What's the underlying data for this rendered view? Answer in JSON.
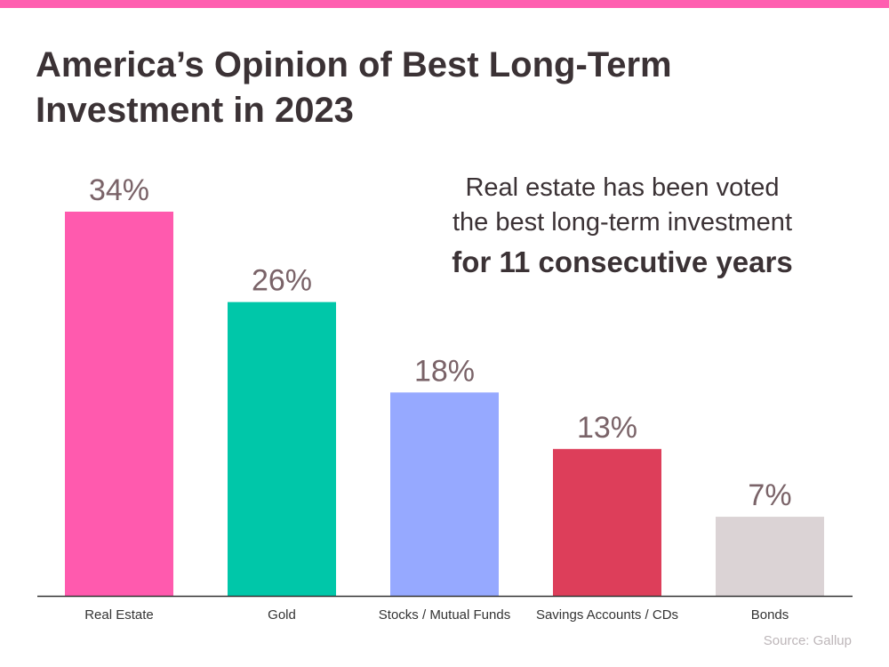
{
  "header": {
    "title": "America’s Opinion of Best Long-Term Investment in 2023"
  },
  "callout": {
    "line1": "Real estate has been voted",
    "line2": "the best long-term investment",
    "bold": "for 11 consecutive years"
  },
  "source": "Source: Gallup",
  "colors": {
    "accent_bar": "#ff5fb0",
    "text": "#3b3235",
    "value_label": "#7a6368",
    "axis": "#333333"
  },
  "chart_data": {
    "type": "bar",
    "title": "America’s Opinion of Best Long-Term Investment in 2023",
    "xlabel": "",
    "ylabel": "",
    "ylim": [
      0,
      34
    ],
    "grid": false,
    "categories": [
      "Real Estate",
      "Gold",
      "Stocks / Mutual Funds",
      "Savings Accounts / CDs",
      "Bonds"
    ],
    "values": [
      34,
      26,
      18,
      13,
      7
    ],
    "value_labels": [
      "34%",
      "26%",
      "18%",
      "13%",
      "7%"
    ],
    "bar_colors": [
      "#ff5aae",
      "#00c7a9",
      "#96a9ff",
      "#dd3e5a",
      "#dbd3d5"
    ]
  }
}
